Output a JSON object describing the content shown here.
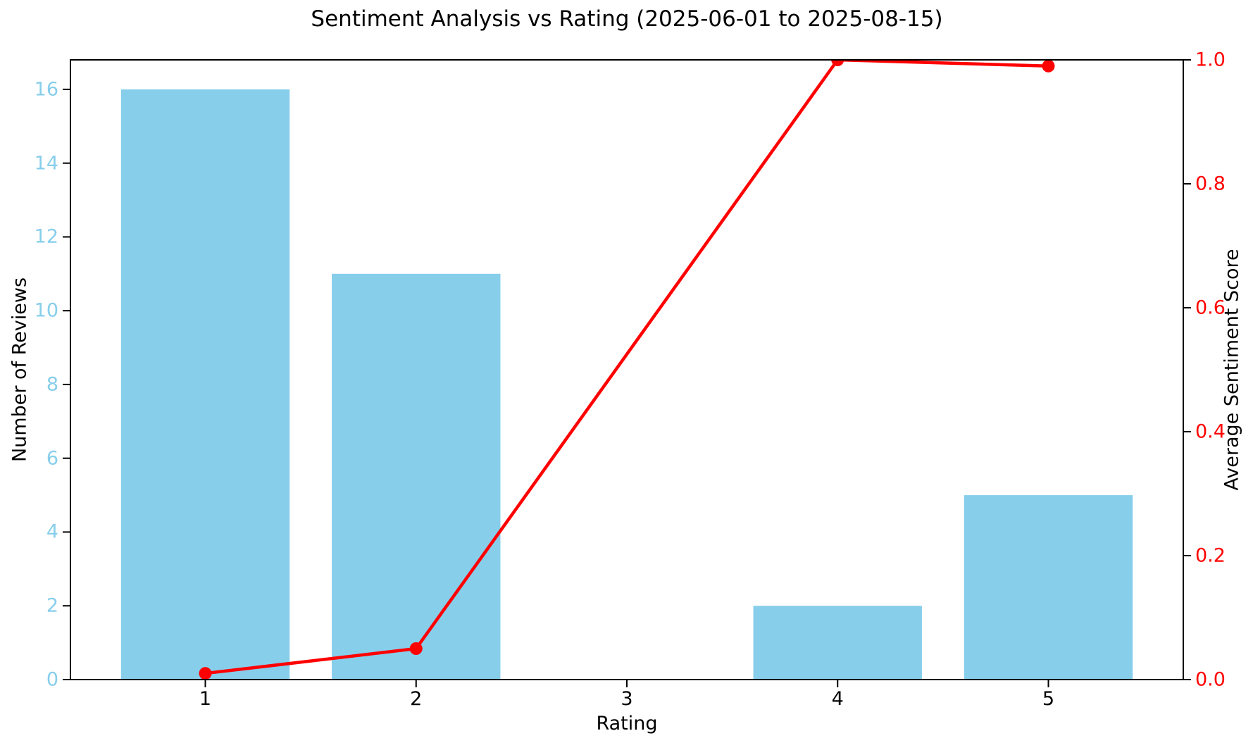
{
  "chart_data": {
    "type": "bar",
    "title": "Sentiment Analysis vs Rating (2025-06-01 to 2025-08-15)",
    "xlabel": "Rating",
    "ylabel_left": "Number of Reviews",
    "ylabel_right": "Average Sentiment Score",
    "categories": [
      1,
      2,
      3,
      4,
      5
    ],
    "bar_width": 0.8,
    "series": [
      {
        "name": "Number of Reviews",
        "type": "bar",
        "axis": "left",
        "color": "#87CEEB",
        "values": [
          16,
          11,
          0,
          2,
          5
        ]
      },
      {
        "name": "Average Sentiment Score",
        "type": "line",
        "axis": "right",
        "color": "#FF0000",
        "points": [
          {
            "x": 1,
            "y": 0.01
          },
          {
            "x": 2,
            "y": 0.05
          },
          {
            "x": 4,
            "y": 1.0
          },
          {
            "x": 5,
            "y": 0.99
          }
        ]
      }
    ],
    "axes": {
      "x": {
        "ticks": [
          1,
          2,
          3,
          4,
          5
        ],
        "lim": [
          0.36,
          5.64
        ],
        "label_color": "#000000"
      },
      "y_left": {
        "ticks": [
          0,
          2,
          4,
          6,
          8,
          10,
          12,
          14,
          16
        ],
        "lim": [
          0,
          16.8
        ],
        "label_color": "#87CEEB"
      },
      "y_right": {
        "ticks": [
          "0.0",
          "0.2",
          "0.4",
          "0.6",
          "0.8",
          "1.0"
        ],
        "lim": [
          0,
          1.0
        ],
        "label_color": "#FF0000"
      }
    },
    "grid": false,
    "legend": "none",
    "spine_color": "#000000"
  }
}
